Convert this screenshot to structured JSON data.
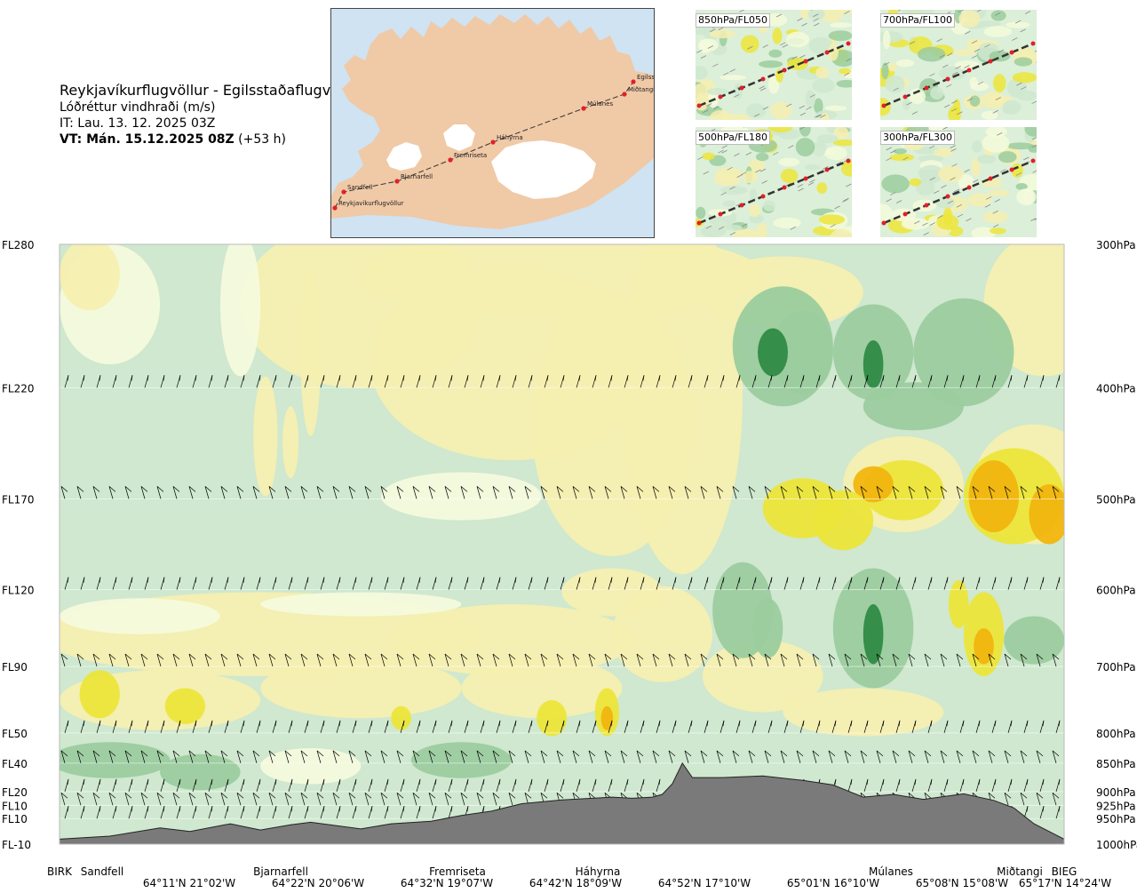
{
  "header": {
    "route": "Reykjavíkurflugvöllur - Egilsstaðaflugvöllur",
    "variable": "Lóðréttur vindhraði (m/s)",
    "issue": "IT: Lau. 13. 12. 2025 03Z",
    "valid": "VT: Mán. 15.12.2025 08Z",
    "valid_offset": "(+53 h)"
  },
  "map": {
    "stations": [
      "Reykjavíkurflugvöllur",
      "Sandfell",
      "Bjarnarfell",
      "Fremriseta",
      "Háhyrna",
      "Múlanes",
      "Miðtangi",
      "Egilss"
    ],
    "colors": {
      "land": "#f0c9a6",
      "sea": "#cfe3f2",
      "ice": "#ffffff",
      "route": "#333333",
      "point": "#e0202a"
    }
  },
  "thumbnails": [
    {
      "label": "850hPa/FL050"
    },
    {
      "label": "700hPa/FL100"
    },
    {
      "label": "500hPa/FL180"
    },
    {
      "label": "300hPa/FL300"
    }
  ],
  "chart_data": {
    "type": "heatmap",
    "title": "Lóðréttur vindhraði (m/s)",
    "levels_left": [
      "FL280",
      "FL220",
      "FL170",
      "FL120",
      "FL90",
      "FL50",
      "FL40",
      "FL20",
      "FL10",
      "FL10",
      "FL-10"
    ],
    "levels_right": [
      "300hPa",
      "400hPa",
      "500hPa",
      "600hPa",
      "700hPa",
      "800hPa",
      "850hPa",
      "900hPa",
      "925hPa",
      "950hPa",
      "1000hPa"
    ],
    "pressure_hpa": [
      300,
      400,
      500,
      600,
      700,
      800,
      850,
      900,
      925,
      950,
      1000
    ],
    "stations": [
      "BIRK",
      "Sandfell",
      "Bjarnarfell",
      "Fremriseta",
      "Háhyrna",
      "Múlanes",
      "Miðtangi",
      "BIEG"
    ],
    "station_fraction": [
      0.0,
      0.05,
      0.26,
      0.43,
      0.54,
      0.83,
      0.96,
      1.0
    ],
    "coordinates": [
      "64°11'N 21°02'W",
      "64°22'N 20°06'W",
      "64°32'N 19°07'W",
      "64°42'N 18°09'W",
      "64°52'N 17°10'W",
      "65°01'N 16°10'W",
      "65°08'N 15°08'W",
      "65°17'N 14°24'W"
    ],
    "coordinate_fraction": [
      0.125,
      0.255,
      0.385,
      0.515,
      0.645,
      0.775,
      0.905,
      1.0
    ],
    "terrain_pressure_hpa": [
      990,
      984,
      968,
      975,
      960,
      972,
      962,
      957,
      970,
      960,
      955,
      944,
      936,
      922,
      915,
      912,
      910,
      912,
      910,
      905,
      886,
      850,
      875,
      875,
      872,
      880,
      888,
      910,
      905,
      914,
      904,
      916,
      930,
      960,
      990
    ],
    "terrain_fraction": [
      0.0,
      0.05,
      0.1,
      0.13,
      0.17,
      0.2,
      0.23,
      0.25,
      0.3,
      0.33,
      0.37,
      0.4,
      0.43,
      0.46,
      0.5,
      0.53,
      0.55,
      0.57,
      0.59,
      0.6,
      0.61,
      0.62,
      0.63,
      0.66,
      0.7,
      0.74,
      0.77,
      0.8,
      0.83,
      0.86,
      0.9,
      0.93,
      0.95,
      0.97,
      1.0
    ],
    "colors": {
      "strong_down": "#2f8a45",
      "down": "#9bcc9e",
      "weak_down": "#cfe8cf",
      "neutral": "#f4fadc",
      "weak_up": "#f6efb0",
      "up": "#ece53a",
      "strong_up": "#f1b50f",
      "terrain": "#7a7a7a",
      "barb": "#000000"
    }
  }
}
